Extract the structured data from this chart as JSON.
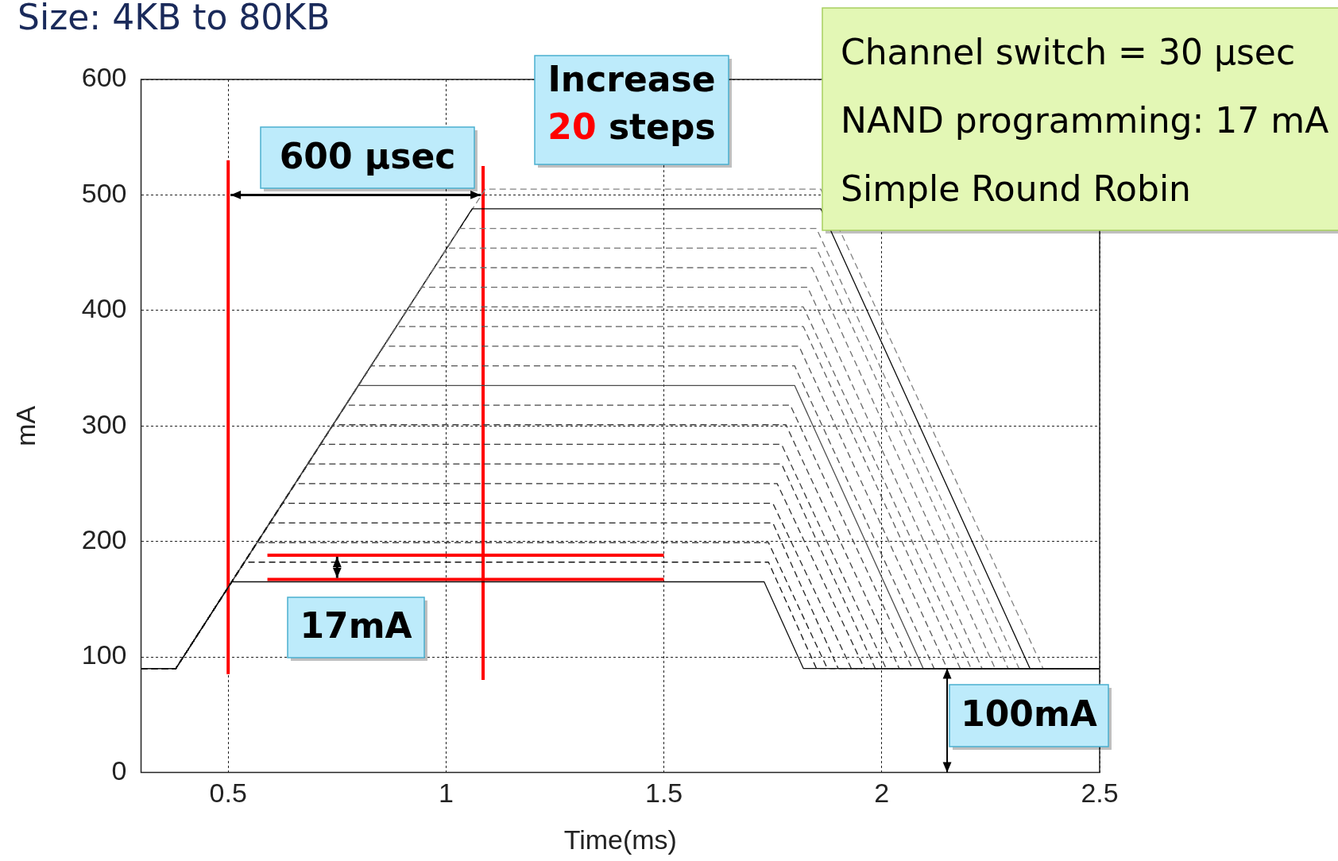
{
  "chart_data": {
    "type": "line",
    "title": "Size: 4KB to 80KB",
    "xlabel": "Time(ms)",
    "ylabel": "mA",
    "xlim": [
      0.3,
      2.5
    ],
    "xticks": [
      0.5,
      1,
      1.5,
      2,
      2.5
    ],
    "ylim": [
      0,
      600
    ],
    "yticks": [
      0,
      100,
      200,
      300,
      400,
      500,
      600
    ],
    "grid": true,
    "legend": false,
    "marker": "none",
    "line_style": "dashed",
    "annotations": [
      "600 μsec",
      "Increase 20 steps",
      "17mA",
      "100mA",
      "Channel switch = 30 μsec",
      "NAND programming: 17 mA",
      "Simple Round Robin"
    ],
    "series": [
      {
        "color": "#101010",
        "line_style": "solid",
        "x": [
          0.3,
          0.38,
          0.508,
          1.73,
          1.82,
          2.5
        ],
        "values": [
          90,
          90,
          165,
          165,
          90,
          90
        ]
      },
      {
        "color": "#161616",
        "x": [
          0.3,
          0.38,
          0.537,
          1.74,
          1.85,
          2.5
        ],
        "values": [
          90,
          90,
          182,
          182,
          90,
          90
        ]
      },
      {
        "color": "#1c1c1c",
        "x": [
          0.3,
          0.38,
          0.566,
          1.74,
          1.875,
          2.5
        ],
        "values": [
          90,
          90,
          199,
          199,
          90,
          90
        ]
      },
      {
        "color": "#222222",
        "x": [
          0.3,
          0.38,
          0.595,
          1.75,
          1.9,
          2.5
        ],
        "values": [
          90,
          90,
          216,
          216,
          90,
          90
        ]
      },
      {
        "color": "#282828",
        "x": [
          0.3,
          0.38,
          0.624,
          1.75,
          1.93,
          2.5
        ],
        "values": [
          90,
          90,
          233,
          233,
          90,
          90
        ]
      },
      {
        "color": "#2e2e2e",
        "x": [
          0.3,
          0.38,
          0.654,
          1.76,
          1.96,
          2.5
        ],
        "values": [
          90,
          90,
          250,
          250,
          90,
          90
        ]
      },
      {
        "color": "#343434",
        "x": [
          0.3,
          0.38,
          0.683,
          1.77,
          1.985,
          2.5
        ],
        "values": [
          90,
          90,
          267,
          267,
          90,
          90
        ]
      },
      {
        "color": "#3a3a3a",
        "x": [
          0.3,
          0.38,
          0.712,
          1.77,
          2.01,
          2.5
        ],
        "values": [
          90,
          90,
          284,
          284,
          90,
          90
        ]
      },
      {
        "color": "#404040",
        "x": [
          0.3,
          0.38,
          0.741,
          1.78,
          2.04,
          2.5
        ],
        "values": [
          90,
          90,
          301,
          301,
          90,
          90
        ]
      },
      {
        "color": "#464646",
        "x": [
          0.3,
          0.38,
          0.77,
          1.79,
          2.07,
          2.5
        ],
        "values": [
          90,
          90,
          318,
          318,
          90,
          90
        ]
      },
      {
        "color": "#4c4c4c",
        "line_style": "solid",
        "x": [
          0.3,
          0.38,
          0.799,
          1.8,
          2.095,
          2.5
        ],
        "values": [
          90,
          90,
          335,
          335,
          90,
          90
        ]
      },
      {
        "color": "#525252",
        "x": [
          0.3,
          0.38,
          0.828,
          1.8,
          2.12,
          2.5
        ],
        "values": [
          90,
          90,
          352,
          352,
          90,
          90
        ]
      },
      {
        "color": "#585858",
        "x": [
          0.3,
          0.38,
          0.857,
          1.81,
          2.15,
          2.5
        ],
        "values": [
          90,
          90,
          369,
          369,
          90,
          90
        ]
      },
      {
        "color": "#5e5e5e",
        "x": [
          0.3,
          0.38,
          0.886,
          1.82,
          2.18,
          2.5
        ],
        "values": [
          90,
          90,
          386,
          386,
          90,
          90
        ]
      },
      {
        "color": "#646464",
        "x": [
          0.3,
          0.38,
          0.915,
          1.82,
          2.205,
          2.5
        ],
        "values": [
          90,
          90,
          403,
          403,
          90,
          90
        ]
      },
      {
        "color": "#6a6a6a",
        "x": [
          0.3,
          0.38,
          0.944,
          1.83,
          2.23,
          2.5
        ],
        "values": [
          90,
          90,
          420,
          420,
          90,
          90
        ]
      },
      {
        "color": "#707070",
        "x": [
          0.3,
          0.38,
          0.973,
          1.84,
          2.26,
          2.5
        ],
        "values": [
          90,
          90,
          437,
          437,
          90,
          90
        ]
      },
      {
        "color": "#767676",
        "x": [
          0.3,
          0.38,
          1.002,
          1.85,
          2.29,
          2.5
        ],
        "values": [
          90,
          90,
          454,
          454,
          90,
          90
        ]
      },
      {
        "color": "#7c7c7c",
        "x": [
          0.3,
          0.38,
          1.031,
          1.85,
          2.315,
          2.5
        ],
        "values": [
          90,
          90,
          471,
          471,
          90,
          90
        ]
      },
      {
        "color": "#0a0a0a",
        "line_style": "solid",
        "x": [
          0.3,
          0.38,
          1.06,
          1.86,
          2.34,
          2.5
        ],
        "values": [
          90,
          90,
          488,
          488,
          90,
          90
        ]
      },
      {
        "color": "#828282",
        "x": [
          0.3,
          0.38,
          1.09,
          1.86,
          2.37,
          2.5
        ],
        "values": [
          90,
          90,
          505,
          505,
          90,
          90
        ]
      },
      {
        "color": "#ff0000",
        "line_style": "solid",
        "x": [
          0.5,
          0.5
        ],
        "values": [
          85,
          530
        ]
      },
      {
        "color": "#ff0000",
        "line_style": "solid",
        "x": [
          1.085,
          1.085
        ],
        "values": [
          80,
          525
        ]
      },
      {
        "color": "#ff0000",
        "line_style": "solid",
        "x": [
          0.59,
          1.5
        ],
        "values": [
          188,
          188
        ]
      },
      {
        "color": "#ff0000",
        "line_style": "solid",
        "x": [
          0.59,
          1.5
        ],
        "values": [
          167,
          167
        ]
      }
    ]
  }
}
